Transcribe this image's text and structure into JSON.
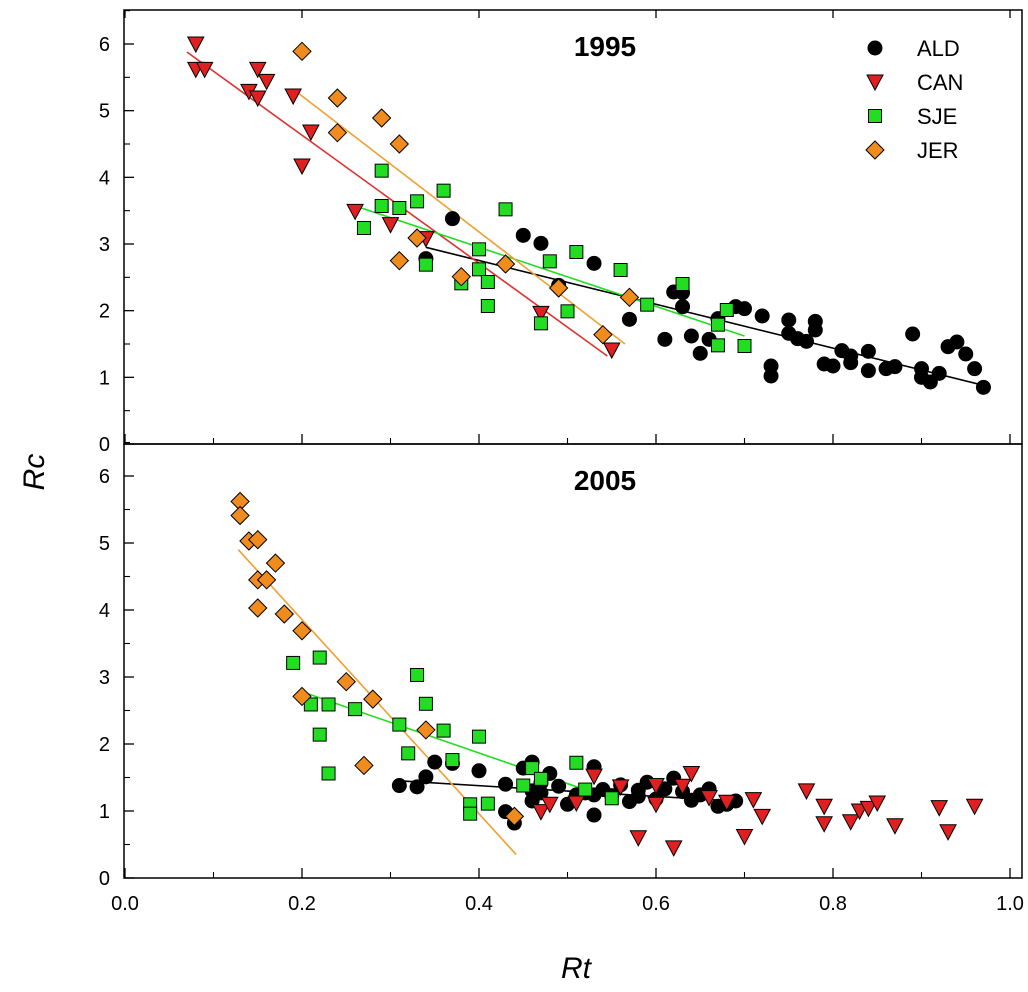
{
  "chart_data": {
    "type": "scatter",
    "xlabel": "Rt",
    "ylabel": "Rc",
    "xlim": [
      0.0,
      1.0
    ],
    "x_ticks": [
      "0.0",
      "0.2",
      "0.4",
      "0.6",
      "0.8",
      "1.0"
    ],
    "y_ticks": [
      "0",
      "1",
      "2",
      "3",
      "4",
      "5",
      "6"
    ],
    "legend_position": "top-right",
    "legend": [
      {
        "name": "ALD",
        "marker": "circle",
        "color": "#000000"
      },
      {
        "name": "CAN",
        "marker": "triangle-down",
        "color": "#e02020"
      },
      {
        "name": "SJE",
        "marker": "square",
        "color": "#22dd22"
      },
      {
        "name": "JER",
        "marker": "diamond",
        "color": "#f08c1e"
      }
    ],
    "panels": [
      {
        "title": "1995",
        "ylim": [
          0,
          6.5
        ],
        "series": [
          {
            "name": "ALD",
            "color": "#000000",
            "line_color": "#000000",
            "fit": [
              [
                0.34,
                2.95
              ],
              [
                0.97,
                0.88
              ]
            ],
            "points": [
              [
                0.34,
                2.78
              ],
              [
                0.37,
                3.38
              ],
              [
                0.45,
                3.13
              ],
              [
                0.47,
                3.01
              ],
              [
                0.49,
                2.38
              ],
              [
                0.53,
                2.71
              ],
              [
                0.57,
                1.87
              ],
              [
                0.61,
                1.57
              ],
              [
                0.62,
                2.28
              ],
              [
                0.63,
                2.06
              ],
              [
                0.63,
                2.27
              ],
              [
                0.64,
                1.62
              ],
              [
                0.65,
                1.36
              ],
              [
                0.66,
                1.57
              ],
              [
                0.67,
                1.88
              ],
              [
                0.69,
                2.06
              ],
              [
                0.7,
                2.03
              ],
              [
                0.72,
                1.92
              ],
              [
                0.73,
                1.02
              ],
              [
                0.73,
                1.17
              ],
              [
                0.75,
                1.86
              ],
              [
                0.75,
                1.66
              ],
              [
                0.76,
                1.58
              ],
              [
                0.77,
                1.54
              ],
              [
                0.78,
                1.84
              ],
              [
                0.78,
                1.71
              ],
              [
                0.79,
                1.2
              ],
              [
                0.8,
                1.17
              ],
              [
                0.81,
                1.4
              ],
              [
                0.82,
                1.32
              ],
              [
                0.82,
                1.22
              ],
              [
                0.84,
                1.39
              ],
              [
                0.84,
                1.1
              ],
              [
                0.86,
                1.13
              ],
              [
                0.87,
                1.16
              ],
              [
                0.89,
                1.65
              ],
              [
                0.9,
                1.0
              ],
              [
                0.9,
                1.13
              ],
              [
                0.91,
                0.93
              ],
              [
                0.92,
                1.06
              ],
              [
                0.93,
                1.46
              ],
              [
                0.94,
                1.53
              ],
              [
                0.95,
                1.35
              ],
              [
                0.96,
                1.13
              ],
              [
                0.97,
                0.85
              ]
            ]
          },
          {
            "name": "CAN",
            "color": "#e02020",
            "line_color": "#e03030",
            "fit": [
              [
                0.07,
                5.88
              ],
              [
                0.545,
                1.32
              ]
            ],
            "points": [
              [
                0.08,
                6.0
              ],
              [
                0.08,
                5.62
              ],
              [
                0.09,
                5.62
              ],
              [
                0.14,
                5.29
              ],
              [
                0.15,
                5.19
              ],
              [
                0.15,
                5.62
              ],
              [
                0.16,
                5.44
              ],
              [
                0.19,
                5.22
              ],
              [
                0.2,
                4.17
              ],
              [
                0.21,
                4.68
              ],
              [
                0.26,
                3.49
              ],
              [
                0.3,
                3.29
              ],
              [
                0.34,
                3.08
              ],
              [
                0.47,
                1.96
              ],
              [
                0.55,
                1.41
              ]
            ]
          },
          {
            "name": "SJE",
            "color": "#22dd22",
            "line_color": "#22dd22",
            "fit": [
              [
                0.265,
                3.55
              ],
              [
                0.7,
                1.62
              ]
            ],
            "points": [
              [
                0.27,
                3.24
              ],
              [
                0.29,
                3.57
              ],
              [
                0.29,
                4.1
              ],
              [
                0.31,
                3.54
              ],
              [
                0.33,
                3.64
              ],
              [
                0.34,
                2.69
              ],
              [
                0.36,
                3.8
              ],
              [
                0.38,
                2.41
              ],
              [
                0.4,
                2.92
              ],
              [
                0.4,
                2.62
              ],
              [
                0.41,
                2.07
              ],
              [
                0.41,
                2.43
              ],
              [
                0.43,
                3.52
              ],
              [
                0.47,
                1.81
              ],
              [
                0.48,
                2.74
              ],
              [
                0.5,
                1.99
              ],
              [
                0.51,
                2.88
              ],
              [
                0.56,
                2.61
              ],
              [
                0.59,
                2.09
              ],
              [
                0.63,
                2.4
              ],
              [
                0.67,
                1.48
              ],
              [
                0.67,
                1.79
              ],
              [
                0.68,
                2.01
              ],
              [
                0.7,
                1.47
              ]
            ]
          },
          {
            "name": "JER",
            "color": "#f08c1e",
            "line_color": "#f0a030",
            "fit": [
              [
                0.195,
                5.27
              ],
              [
                0.565,
                1.5
              ]
            ],
            "points": [
              [
                0.2,
                5.89
              ],
              [
                0.24,
                5.19
              ],
              [
                0.24,
                4.67
              ],
              [
                0.29,
                4.89
              ],
              [
                0.31,
                4.5
              ],
              [
                0.33,
                3.09
              ],
              [
                0.31,
                2.75
              ],
              [
                0.38,
                2.51
              ],
              [
                0.43,
                2.7
              ],
              [
                0.49,
                2.34
              ],
              [
                0.54,
                1.64
              ],
              [
                0.57,
                2.2
              ]
            ]
          }
        ]
      },
      {
        "title": "2005",
        "ylim": [
          0,
          6.5
        ],
        "series": [
          {
            "name": "ALD",
            "color": "#000000",
            "line_color": "#000000",
            "fit": [
              [
                0.31,
                1.45
              ],
              [
                0.685,
                1.15
              ]
            ],
            "points": [
              [
                0.31,
                1.38
              ],
              [
                0.33,
                1.36
              ],
              [
                0.34,
                1.51
              ],
              [
                0.35,
                1.73
              ],
              [
                0.37,
                1.71
              ],
              [
                0.4,
                1.6
              ],
              [
                0.43,
                0.99
              ],
              [
                0.43,
                1.4
              ],
              [
                0.44,
                0.82
              ],
              [
                0.45,
                1.64
              ],
              [
                0.46,
                1.73
              ],
              [
                0.46,
                1.15
              ],
              [
                0.46,
                1.3
              ],
              [
                0.47,
                1.27
              ],
              [
                0.47,
                1.42
              ],
              [
                0.48,
                1.56
              ],
              [
                0.49,
                1.37
              ],
              [
                0.5,
                1.1
              ],
              [
                0.51,
                1.24
              ],
              [
                0.52,
                1.27
              ],
              [
                0.53,
                1.66
              ],
              [
                0.53,
                0.94
              ],
              [
                0.53,
                1.24
              ],
              [
                0.54,
                1.32
              ],
              [
                0.55,
                1.23
              ],
              [
                0.56,
                1.39
              ],
              [
                0.57,
                1.14
              ],
              [
                0.58,
                1.22
              ],
              [
                0.58,
                1.31
              ],
              [
                0.59,
                1.43
              ],
              [
                0.6,
                1.18
              ],
              [
                0.61,
                1.33
              ],
              [
                0.62,
                1.49
              ],
              [
                0.63,
                1.29
              ],
              [
                0.64,
                1.16
              ],
              [
                0.65,
                1.24
              ],
              [
                0.66,
                1.33
              ],
              [
                0.67,
                1.07
              ],
              [
                0.68,
                1.1
              ],
              [
                0.69,
                1.15
              ]
            ]
          },
          {
            "name": "CAN",
            "color": "#e02020",
            "line_color": "#e03030",
            "fit": null,
            "points": [
              [
                0.47,
                0.99
              ],
              [
                0.48,
                1.1
              ],
              [
                0.51,
                1.12
              ],
              [
                0.53,
                1.52
              ],
              [
                0.56,
                1.36
              ],
              [
                0.58,
                0.6
              ],
              [
                0.6,
                1.38
              ],
              [
                0.6,
                1.1
              ],
              [
                0.62,
                0.45
              ],
              [
                0.63,
                1.37
              ],
              [
                0.64,
                1.56
              ],
              [
                0.66,
                1.2
              ],
              [
                0.68,
                1.13
              ],
              [
                0.7,
                0.62
              ],
              [
                0.71,
                1.17
              ],
              [
                0.72,
                0.92
              ],
              [
                0.77,
                1.3
              ],
              [
                0.79,
                1.07
              ],
              [
                0.79,
                0.81
              ],
              [
                0.82,
                0.84
              ],
              [
                0.83,
                1.0
              ],
              [
                0.84,
                1.04
              ],
              [
                0.85,
                1.12
              ],
              [
                0.87,
                0.78
              ],
              [
                0.92,
                1.05
              ],
              [
                0.93,
                0.69
              ],
              [
                0.96,
                1.07
              ]
            ]
          },
          {
            "name": "SJE",
            "color": "#22dd22",
            "line_color": "#22dd22",
            "fit": [
              [
                0.2,
                2.78
              ],
              [
                0.55,
                1.18
              ]
            ],
            "points": [
              [
                0.19,
                3.21
              ],
              [
                0.21,
                2.59
              ],
              [
                0.22,
                3.29
              ],
              [
                0.22,
                2.14
              ],
              [
                0.23,
                2.59
              ],
              [
                0.23,
                1.56
              ],
              [
                0.26,
                2.52
              ],
              [
                0.31,
                2.29
              ],
              [
                0.32,
                1.86
              ],
              [
                0.33,
                3.03
              ],
              [
                0.34,
                2.6
              ],
              [
                0.36,
                2.2
              ],
              [
                0.37,
                1.76
              ],
              [
                0.39,
                1.1
              ],
              [
                0.39,
                0.96
              ],
              [
                0.4,
                2.11
              ],
              [
                0.41,
                1.11
              ],
              [
                0.45,
                1.38
              ],
              [
                0.46,
                1.64
              ],
              [
                0.47,
                1.48
              ],
              [
                0.51,
                1.72
              ],
              [
                0.52,
                1.32
              ],
              [
                0.55,
                1.19
              ]
            ]
          },
          {
            "name": "JER",
            "color": "#f08c1e",
            "line_color": "#f0a030",
            "fit": [
              [
                0.128,
                4.9
              ],
              [
                0.442,
                0.35
              ]
            ],
            "points": [
              [
                0.13,
                5.62
              ],
              [
                0.13,
                5.41
              ],
              [
                0.14,
                5.03
              ],
              [
                0.15,
                5.05
              ],
              [
                0.15,
                4.45
              ],
              [
                0.15,
                4.03
              ],
              [
                0.16,
                4.45
              ],
              [
                0.17,
                4.7
              ],
              [
                0.18,
                3.94
              ],
              [
                0.2,
                3.69
              ],
              [
                0.2,
                2.71
              ],
              [
                0.25,
                2.93
              ],
              [
                0.27,
                1.68
              ],
              [
                0.28,
                2.67
              ],
              [
                0.34,
                2.21
              ],
              [
                0.44,
                0.92
              ]
            ]
          }
        ]
      }
    ]
  }
}
